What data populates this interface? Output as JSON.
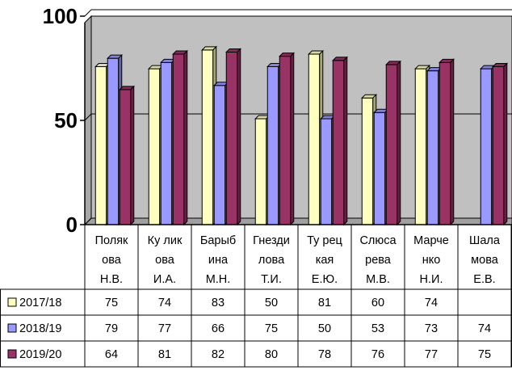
{
  "chart_data": {
    "type": "bar",
    "categories": [
      {
        "lines": [
          "Поляк",
          "ова",
          "Н.В."
        ]
      },
      {
        "lines": [
          "Ку лик",
          "ова",
          "И.А."
        ]
      },
      {
        "lines": [
          "Барыб",
          "ина",
          "М.Н."
        ]
      },
      {
        "lines": [
          "Гнезди",
          "лова",
          "Т.И."
        ]
      },
      {
        "lines": [
          "Ту рец",
          "кая",
          "Е.Ю."
        ]
      },
      {
        "lines": [
          "Слюса",
          "рева",
          "М.В."
        ]
      },
      {
        "lines": [
          "Марче",
          "нко",
          "Н.И."
        ]
      },
      {
        "lines": [
          "Шала",
          "мова",
          "Е.В."
        ]
      }
    ],
    "series": [
      {
        "name": "2017/18",
        "color": "#ffffc0",
        "values": [
          75,
          74,
          83,
          50,
          81,
          60,
          74,
          null
        ]
      },
      {
        "name": "2018/19",
        "color": "#9999ff",
        "values": [
          79,
          77,
          66,
          75,
          50,
          53,
          73,
          74
        ]
      },
      {
        "name": "2019/20",
        "color": "#993366",
        "values": [
          64,
          81,
          82,
          80,
          78,
          76,
          77,
          75
        ]
      }
    ],
    "ylim": [
      0,
      100
    ],
    "yticks": [
      "0",
      "50",
      "100"
    ],
    "grid": true,
    "plot_background": "#c0c0c0",
    "legend": "data-table-below",
    "data_table": true
  }
}
